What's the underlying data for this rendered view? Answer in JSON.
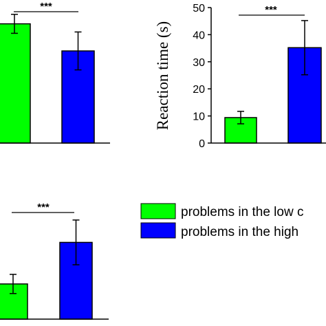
{
  "chart_data": [
    {
      "type": "bar",
      "panel": "top-left",
      "categories": [
        "problems in the low c",
        "problems in the high"
      ],
      "series": [
        {
          "values": [
            44,
            34
          ],
          "errors": [
            3.5,
            7
          ],
          "colors": [
            "#00ff00",
            "#0000ff"
          ]
        }
      ],
      "ylim": [
        0,
        50
      ],
      "significance": "***",
      "ylabel": ""
    },
    {
      "type": "bar",
      "panel": "top-right",
      "categories": [
        "problems in the low c",
        "problems in the high"
      ],
      "series": [
        {
          "values": [
            9.4,
            35.2
          ],
          "errors": [
            2.3,
            10
          ],
          "colors": [
            "#00ff00",
            "#0000ff"
          ]
        }
      ],
      "ylim": [
        0,
        50
      ],
      "yticks": [
        0,
        10,
        20,
        30,
        40,
        50
      ],
      "ylabel": "Reaction time (s)",
      "significance": "***"
    },
    {
      "type": "bar",
      "panel": "bottom-left",
      "categories": [
        "problems in the low c",
        "problems in the high"
      ],
      "series": [
        {
          "values": [
            11,
            24
          ],
          "errors": [
            3,
            7
          ],
          "colors": [
            "#00ff00",
            "#0000ff"
          ]
        }
      ],
      "ylim": [
        0,
        37
      ],
      "significance": "***",
      "ylabel": ""
    }
  ],
  "legend": {
    "placement": "bottom-right",
    "entries": [
      {
        "label": "problems in the low c",
        "color": "#00ff00"
      },
      {
        "label": "problems in the high",
        "color": "#0000ff"
      }
    ]
  }
}
